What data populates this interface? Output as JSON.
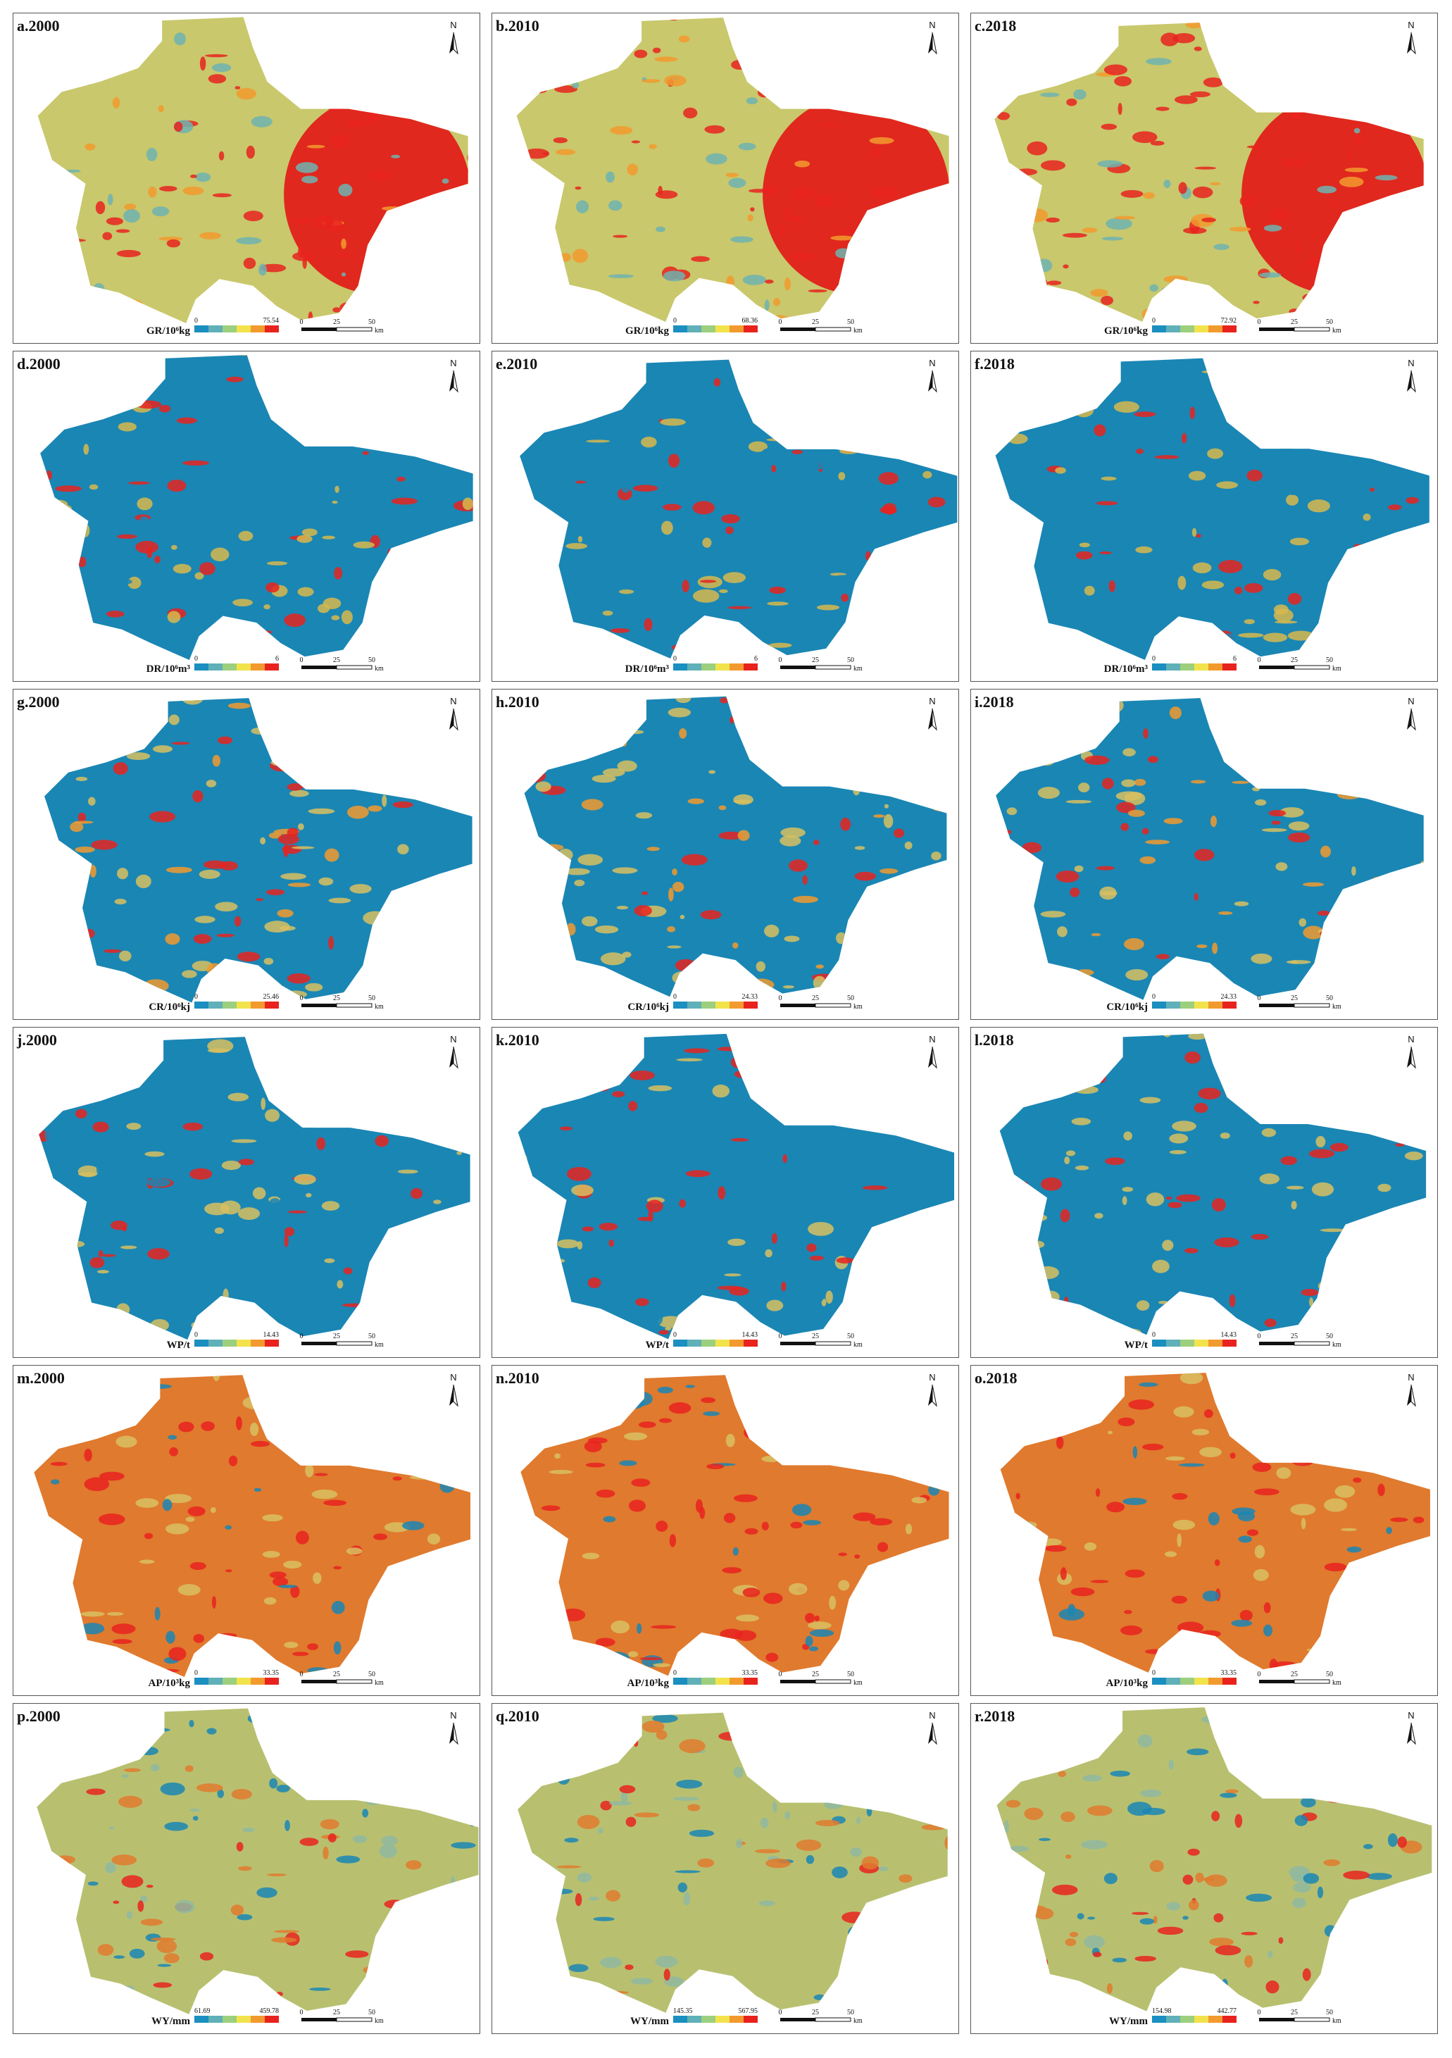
{
  "north": "N",
  "scale_bar": {
    "ticks": [
      "0",
      "25",
      "50"
    ],
    "unit": "km"
  },
  "legend_colors": [
    "#1a8fc0",
    "#5fb0b8",
    "#9ccf7e",
    "#f2e34c",
    "#f29a2e",
    "#e8231e"
  ],
  "panels": [
    {
      "label": "a.2000",
      "legend": {
        "title": "GR/10⁶kg",
        "min": "0",
        "max": "75.54"
      }
    },
    {
      "label": "b.2010",
      "legend": {
        "title": "GR/10⁶kg",
        "min": "0",
        "max": "68.36"
      }
    },
    {
      "label": "c.2018",
      "legend": {
        "title": "GR/10⁶kg",
        "min": "0",
        "max": "72.92"
      }
    },
    {
      "label": "d.2000",
      "legend": {
        "title": "DR/10⁶m³",
        "min": "0",
        "max": "6"
      }
    },
    {
      "label": "e.2010",
      "legend": {
        "title": "DR/10⁶m³",
        "min": "0",
        "max": "6"
      }
    },
    {
      "label": "f.2018",
      "legend": {
        "title": "DR/10⁶m³",
        "min": "0",
        "max": "6"
      }
    },
    {
      "label": "g.2000",
      "legend": {
        "title": "CR/10⁶kj",
        "min": "0",
        "max": "25.46"
      }
    },
    {
      "label": "h.2010",
      "legend": {
        "title": "CR/10⁶kj",
        "min": "0",
        "max": "24.33"
      }
    },
    {
      "label": "i.2018",
      "legend": {
        "title": "CR/10⁶kj",
        "min": "0",
        "max": "24.33"
      }
    },
    {
      "label": "j.2000",
      "legend": {
        "title": "WP/t",
        "min": "0",
        "max": "14.43"
      }
    },
    {
      "label": "k.2010",
      "legend": {
        "title": "WP/t",
        "min": "0",
        "max": "14.43"
      }
    },
    {
      "label": "l.2018",
      "legend": {
        "title": "WP/t",
        "min": "0",
        "max": "14.43"
      }
    },
    {
      "label": "m.2000",
      "legend": {
        "title": "AP/10³kg",
        "min": "0",
        "max": "33.35"
      }
    },
    {
      "label": "n.2010",
      "legend": {
        "title": "AP/10³kg",
        "min": "0",
        "max": "33.35"
      }
    },
    {
      "label": "o.2018",
      "legend": {
        "title": "AP/10³kg",
        "min": "0",
        "max": "33.35"
      }
    },
    {
      "label": "p.2000",
      "legend": {
        "title": "WY/mm",
        "min": "61.69",
        "max": "459.78"
      }
    },
    {
      "label": "q.2010",
      "legend": {
        "title": "WY/mm",
        "min": "145.35",
        "max": "567.95"
      }
    },
    {
      "label": "r.2018",
      "legend": {
        "title": "WY/mm",
        "min": "154.98",
        "max": "442.77"
      }
    }
  ]
}
